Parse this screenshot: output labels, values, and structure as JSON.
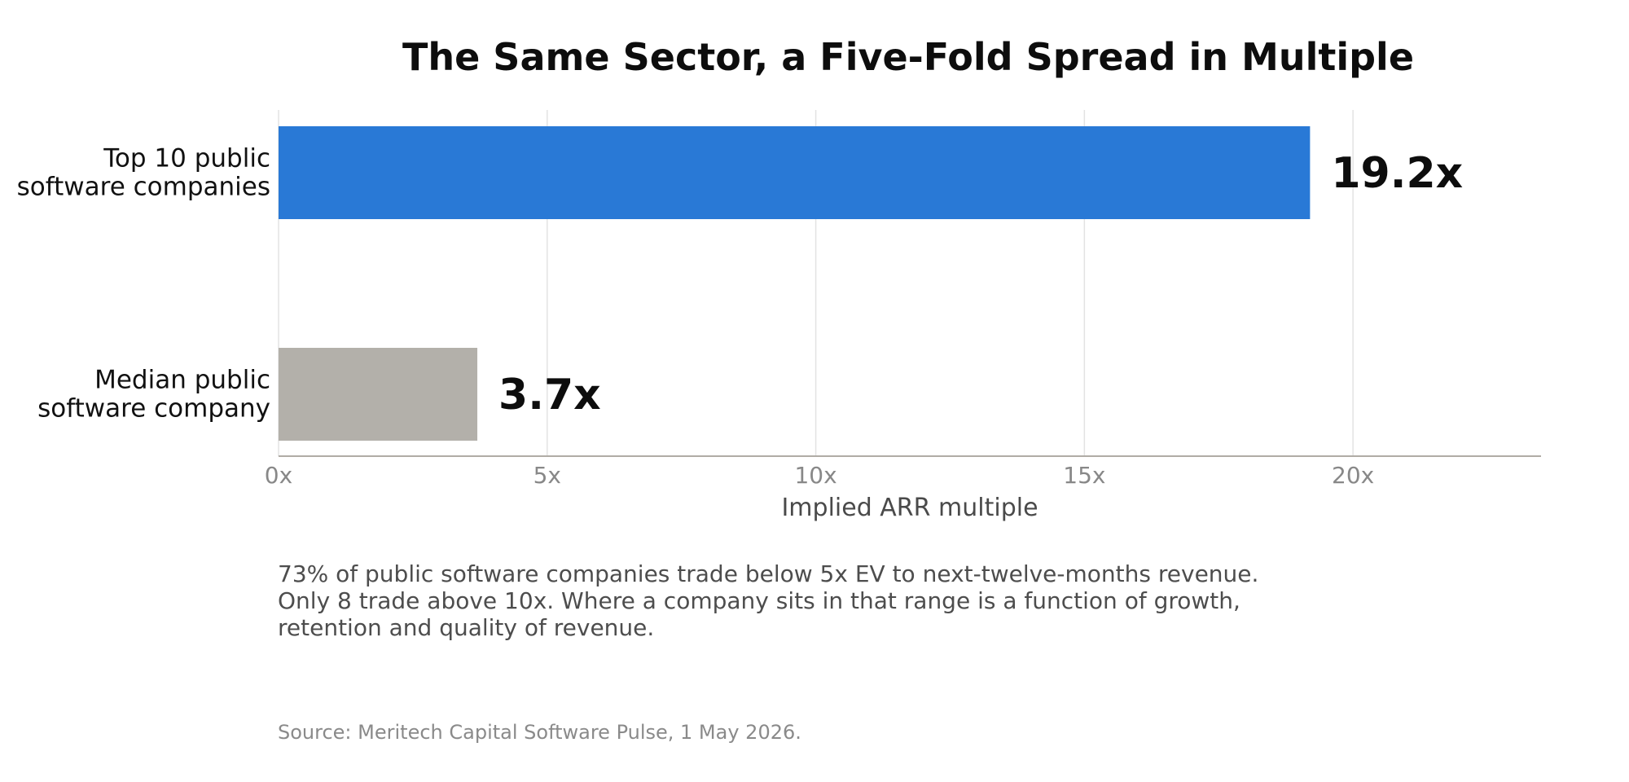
{
  "chart_data": {
    "type": "bar",
    "orientation": "horizontal",
    "title": "The Same Sector, a Five-Fold Spread in Multiple",
    "xlabel": "Implied ARR multiple",
    "ylabel": "",
    "categories": [
      [
        "Top 10 public",
        "software companies"
      ],
      [
        "Median public",
        "software company"
      ]
    ],
    "values": [
      19.2,
      3.7
    ],
    "value_labels": [
      "19.2x",
      "3.7x"
    ],
    "bar_colors": [
      "#2979d6",
      "#b3b0aa"
    ],
    "xlim": [
      0,
      23.5
    ],
    "xticks": [
      0,
      5,
      10,
      15,
      20
    ],
    "xtick_labels": [
      "0x",
      "5x",
      "10x",
      "15x",
      "20x"
    ],
    "grid": "vertical",
    "legend": "none"
  },
  "annotation": "73% of public software companies trade below 5x EV to next-twelve-months revenue.\nOnly 8 trade above 10x. Where a company sits in that range is a function of growth,\nretention and quality of revenue.",
  "source": "Source: Meritech Capital Software Pulse, 1 May 2026."
}
